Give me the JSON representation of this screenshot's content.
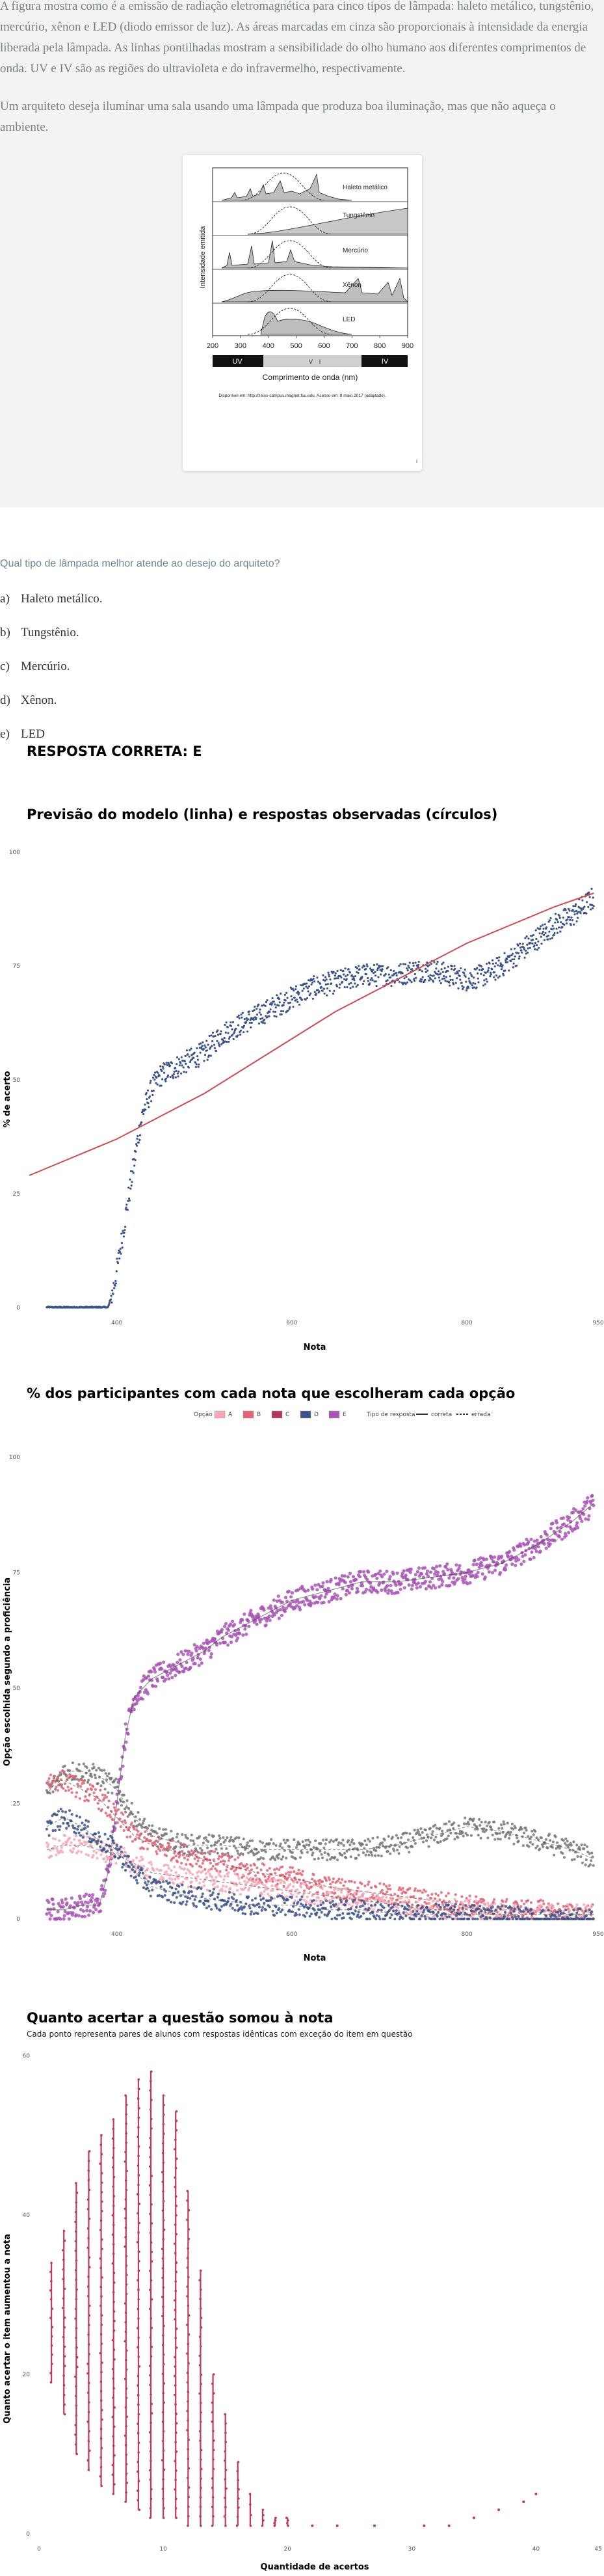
{
  "stem": {
    "paragraph1": "A figura mostra como é a emissão de radiação eletromagnética para cinco tipos de lâmpada: haleto metálico, tungstênio, mercúrio, xênon e LED (diodo emissor de luz). As áreas marcadas em cinza são proporcionais à intensidade da energia liberada pela lâmpada. As linhas pontilhadas mostram a sensibilidade do olho humano aos diferentes comprimentos de onda. UV e IV são as regiões do ultravioleta e do infravermelho, respectivamente.",
    "paragraph2": "Um arquiteto deseja iluminar uma sala usando uma lâmpada que produza boa iluminação, mas que não aqueça o ambiente."
  },
  "figure": {
    "lamp_labels": [
      "Haleto metálico",
      "Tungstênio",
      "Mercúrio",
      "Xênon",
      "LED"
    ],
    "y_label": "Intensidade emitida",
    "x_ticks": [
      "200",
      "300",
      "400",
      "500",
      "600",
      "700",
      "800",
      "900"
    ],
    "x_label": "Comprimento de onda (nm)",
    "band_uv": "UV",
    "band_ir": "IV",
    "band_v": "V",
    "band_i": "I",
    "source": "Disponível em: http://zeiss-campus.magnet.fsu.edu. Acesso em: 8 maio 2017 (adaptado).",
    "page_marker": "i"
  },
  "question": {
    "text": "Qual tipo de lâmpada melhor atende ao desejo do arquiteto?",
    "alternatives": [
      {
        "letter": "a)",
        "text": "Haleto metálico."
      },
      {
        "letter": "b)",
        "text": "Tungstênio."
      },
      {
        "letter": "c)",
        "text": "Mercúrio."
      },
      {
        "letter": "d)",
        "text": "Xênon."
      },
      {
        "letter": "e)",
        "text": "LED"
      }
    ]
  },
  "answer": {
    "text": "RESPOSTA CORRETA: E"
  },
  "chart_data": [
    {
      "type": "scatter",
      "title": "Previsão do modelo (linha) e respostas observadas (círculos)",
      "xlabel": "Nota",
      "ylabel": "% de acerto",
      "xlim": [
        300,
        950
      ],
      "ylim": [
        0,
        100
      ],
      "x_ticks": [
        400,
        600,
        800,
        950
      ],
      "x_tick_labels": [
        "400",
        "600",
        "800",
        "950"
      ],
      "y_ticks": [
        0,
        25,
        50,
        75,
        100
      ],
      "grid": false,
      "colors": {
        "points": "#3b528b",
        "line": "#d4484f"
      },
      "observed_points": {
        "x": [
          320,
          340,
          360,
          380,
          390,
          395,
          400,
          405,
          410,
          415,
          420,
          425,
          430,
          440,
          450,
          460,
          470,
          480,
          490,
          500,
          510,
          520,
          540,
          560,
          580,
          600,
          620,
          640,
          660,
          680,
          700,
          720,
          740,
          760,
          780,
          800,
          820,
          840,
          860,
          880,
          900,
          920,
          945
        ],
        "y": [
          0,
          0,
          0,
          0,
          0,
          3,
          8,
          14,
          20,
          26,
          32,
          38,
          43,
          48,
          51,
          52,
          53,
          54,
          55,
          56,
          58,
          60,
          62,
          64,
          66,
          68,
          70,
          71,
          72,
          73,
          73,
          73,
          74,
          74,
          73,
          72,
          73,
          75,
          78,
          81,
          84,
          86,
          90
        ]
      },
      "model_line": {
        "x": [
          300,
          350,
          400,
          450,
          500,
          550,
          600,
          650,
          700,
          750,
          800,
          850,
          900,
          945
        ],
        "y": [
          29,
          33,
          37,
          42,
          47,
          53,
          59,
          65,
          70,
          75,
          80,
          84,
          88,
          91
        ]
      }
    },
    {
      "type": "scatter",
      "title": "% dos participantes com cada nota que escolheram cada opção",
      "xlabel": "Nota",
      "ylabel": "Opção escolhida segundo a proficiência",
      "xlim": [
        300,
        950
      ],
      "ylim": [
        0,
        100
      ],
      "x_ticks": [
        400,
        600,
        800,
        950
      ],
      "x_tick_labels": [
        "400",
        "600",
        "800",
        "950"
      ],
      "y_ticks": [
        0,
        25,
        50,
        75,
        100
      ],
      "grid": false,
      "legend": {
        "option_title": "Opção",
        "options": [
          "A",
          "B",
          "C",
          "D",
          "E"
        ],
        "option_colors": [
          "#f4a8b4",
          "#e06476",
          "#b0395a",
          "#3b528b",
          "#a855b5"
        ],
        "type_title": "Tipo de resposta",
        "types": [
          "correta",
          "errada"
        ],
        "placement": "top"
      },
      "series": [
        {
          "name": "E",
          "correct": true,
          "color": "#a855b5",
          "x": [
            320,
            340,
            360,
            380,
            390,
            400,
            410,
            420,
            440,
            460,
            480,
            500,
            520,
            560,
            600,
            640,
            680,
            720,
            760,
            800,
            840,
            880,
            920,
            945
          ],
          "y": [
            2,
            2,
            3,
            3,
            10,
            25,
            40,
            48,
            52,
            54,
            56,
            58,
            61,
            65,
            69,
            71,
            73,
            73,
            74,
            75,
            77,
            81,
            86,
            90
          ]
        },
        {
          "name": "D",
          "correct": false,
          "color": "#777777",
          "x": [
            320,
            340,
            360,
            380,
            400,
            420,
            440,
            480,
            520,
            560,
            600,
            640,
            680,
            720,
            760,
            800,
            840,
            880,
            920,
            945
          ],
          "y": [
            27,
            32,
            32,
            31,
            28,
            22,
            18,
            16,
            16,
            15,
            15,
            15,
            15,
            16,
            18,
            20,
            19,
            17,
            15,
            13
          ]
        },
        {
          "name": "C",
          "correct": false,
          "color": "#e06476",
          "x": [
            320,
            340,
            360,
            380,
            400,
            420,
            440,
            480,
            520,
            560,
            600,
            640,
            680,
            720,
            760,
            800,
            840,
            880,
            920,
            945
          ],
          "y": [
            30,
            30,
            28,
            26,
            22,
            18,
            16,
            14,
            12,
            10,
            9,
            7,
            6,
            5,
            4,
            3,
            2,
            2,
            1,
            1
          ]
        },
        {
          "name": "A",
          "correct": false,
          "color": "#f4a8b4",
          "x": [
            320,
            340,
            360,
            380,
            400,
            420,
            440,
            480,
            520,
            560,
            600,
            640,
            680,
            720,
            760,
            800,
            840,
            880,
            920,
            945
          ],
          "y": [
            15,
            16,
            16,
            15,
            14,
            12,
            10,
            9,
            8,
            7,
            6,
            5,
            4,
            3,
            2,
            2,
            1,
            1,
            1,
            1
          ]
        },
        {
          "name": "B",
          "correct": false,
          "color": "#3b528b",
          "x": [
            320,
            340,
            360,
            380,
            400,
            420,
            440,
            480,
            520,
            560,
            600,
            640,
            680,
            720,
            760,
            800,
            840,
            880,
            920,
            945
          ],
          "y": [
            20,
            22,
            20,
            17,
            15,
            10,
            7,
            5,
            4,
            3,
            3,
            2,
            2,
            1,
            1,
            1,
            1,
            0,
            0,
            0
          ]
        }
      ]
    },
    {
      "type": "scatter",
      "title": "Quanto acertar a questão somou à nota",
      "subtitle": "Cada ponto representa pares de alunos com respostas idênticas com exceção do item em questão",
      "xlabel": "Quantidade de acertos",
      "ylabel": "Quanto acertar o item aumentou a nota",
      "xlim": [
        0,
        45
      ],
      "ylim": [
        0,
        60
      ],
      "x_ticks": [
        0,
        10,
        20,
        30,
        40,
        45
      ],
      "x_tick_labels": [
        "0",
        "10",
        "20",
        "30",
        "40",
        "45"
      ],
      "y_ticks": [
        0,
        20,
        40,
        60
      ],
      "grid": false,
      "color": "#c13b57",
      "columns": [
        {
          "x": 1,
          "ymin": 19,
          "ymax": 34
        },
        {
          "x": 2,
          "ymin": 15,
          "ymax": 38
        },
        {
          "x": 3,
          "ymin": 10,
          "ymax": 44
        },
        {
          "x": 4,
          "ymin": 8,
          "ymax": 48
        },
        {
          "x": 5,
          "ymin": 6,
          "ymax": 50
        },
        {
          "x": 6,
          "ymin": 5,
          "ymax": 52
        },
        {
          "x": 7,
          "ymin": 4,
          "ymax": 55
        },
        {
          "x": 8,
          "ymin": 3,
          "ymax": 57
        },
        {
          "x": 9,
          "ymin": 2,
          "ymax": 58
        },
        {
          "x": 10,
          "ymin": 2,
          "ymax": 55
        },
        {
          "x": 11,
          "ymin": 2,
          "ymax": 53
        },
        {
          "x": 12,
          "ymin": 1,
          "ymax": 43
        },
        {
          "x": 13,
          "ymin": 1,
          "ymax": 33
        },
        {
          "x": 14,
          "ymin": 1,
          "ymax": 20
        },
        {
          "x": 15,
          "ymin": 1,
          "ymax": 15
        },
        {
          "x": 16,
          "ymin": 1,
          "ymax": 9
        },
        {
          "x": 17,
          "ymin": 1,
          "ymax": 5
        },
        {
          "x": 18,
          "ymin": 1,
          "ymax": 3
        },
        {
          "x": 19,
          "ymin": 1,
          "ymax": 2
        },
        {
          "x": 20,
          "ymin": 1,
          "ymax": 2
        }
      ],
      "scattered_points": {
        "x": [
          22,
          24,
          27,
          31,
          33,
          35,
          37,
          39,
          40
        ],
        "y": [
          1,
          1,
          1,
          1,
          1,
          2,
          3,
          4,
          5
        ]
      }
    }
  ]
}
